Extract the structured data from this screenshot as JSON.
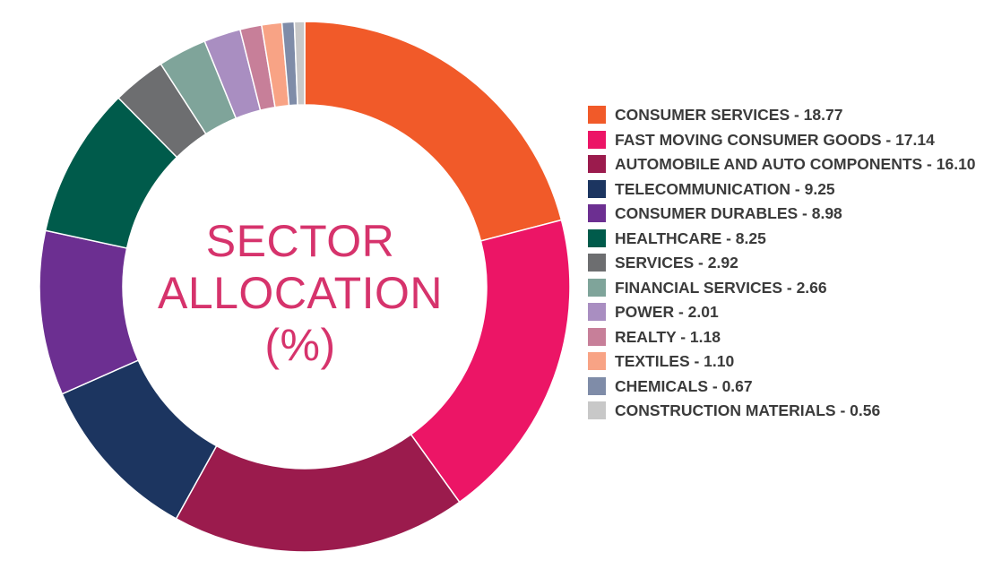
{
  "chart_data": {
    "type": "pie",
    "title": "SECTOR ALLOCATION (%)",
    "title_lines": [
      "SECTOR",
      "ALLOCATION",
      "(%)"
    ],
    "donut": true,
    "legend_position": "right",
    "slices": [
      {
        "label": "CONSUMER SERVICES",
        "value": 18.77,
        "legend": "CONSUMER SERVICES - 18.77",
        "color": "#f15a29"
      },
      {
        "label": "FAST MOVING CONSUMER GOODS",
        "value": 17.14,
        "legend": "FAST MOVING CONSUMER GOODS - 17.14",
        "color": "#ec1566"
      },
      {
        "label": "AUTOMOBILE AND AUTO COMPONENTS",
        "value": 16.1,
        "legend": "AUTOMOBILE AND AUTO COMPONENTS - 16.10",
        "color": "#9b1b4d"
      },
      {
        "label": "TELECOMMUNICATION",
        "value": 9.25,
        "legend": "TELECOMMUNICATION - 9.25",
        "color": "#1c3560"
      },
      {
        "label": "CONSUMER DURABLES",
        "value": 8.98,
        "legend": "CONSUMER DURABLES - 8.98",
        "color": "#6c2f91"
      },
      {
        "label": "HEALTHCARE",
        "value": 8.25,
        "legend": "HEALTHCARE - 8.25",
        "color": "#005b4b"
      },
      {
        "label": "SERVICES",
        "value": 2.92,
        "legend": "SERVICES - 2.92",
        "color": "#6d6e70"
      },
      {
        "label": "FINANCIAL SERVICES",
        "value": 2.66,
        "legend": "FINANCIAL SERVICES - 2.66",
        "color": "#7fa49a"
      },
      {
        "label": "POWER",
        "value": 2.01,
        "legend": "POWER - 2.01",
        "color": "#a98ec1"
      },
      {
        "label": "REALTY",
        "value": 1.18,
        "legend": "REALTY - 1.18",
        "color": "#c77f99"
      },
      {
        "label": "TEXTILES",
        "value": 1.1,
        "legend": "TEXTILES - 1.10",
        "color": "#f8a385"
      },
      {
        "label": "CHEMICALS",
        "value": 0.67,
        "legend": "CHEMICALS - 0.67",
        "color": "#7f8ca8"
      },
      {
        "label": "CONSTRUCTION MATERIALS",
        "value": 0.56,
        "legend": "CONSTRUCTION MATERIALS - 0.56",
        "color": "#c8c8c8"
      }
    ]
  }
}
